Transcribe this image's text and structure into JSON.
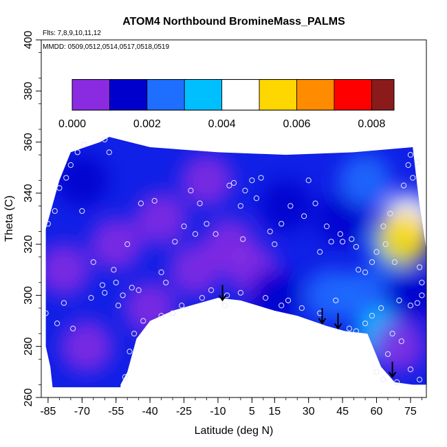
{
  "chart_data": {
    "type": "heatmap",
    "title": "ATOM4 Northbound BromineMass_PALMS",
    "subtitle_flights": "Flts: 7,8,9,10,11,12",
    "subtitle_dates": "MMDD: 0509,0512,0514,0517,0518,0519",
    "xlabel": "Latitude (deg N)",
    "ylabel": "Theta (C)",
    "xlim": [
      -88,
      82
    ],
    "ylim": [
      260,
      400
    ],
    "x_ticks": [
      "-85",
      "-70",
      "-55",
      "-40",
      "-25",
      "-10",
      "5",
      "15",
      "30",
      "45",
      "60",
      "75"
    ],
    "x_tick_values": [
      -85,
      -70,
      -55,
      -40,
      -25,
      -10,
      5,
      15,
      30,
      45,
      60,
      75
    ],
    "y_ticks": [
      "260",
      "280",
      "300",
      "320",
      "340",
      "360",
      "380",
      "400"
    ],
    "y_tick_values": [
      260,
      280,
      300,
      320,
      340,
      360,
      380,
      400
    ],
    "colorbar": {
      "min": 0,
      "max": 0.0086,
      "tick_labels": [
        "0.000",
        "0.002",
        "0.004",
        "0.006",
        "0.008"
      ],
      "tick_values": [
        0.0,
        0.002,
        0.004,
        0.006,
        0.008
      ],
      "segment_edges": [
        0.0,
        0.001,
        0.002,
        0.003,
        0.004,
        0.005,
        0.006,
        0.007,
        0.008,
        0.0086
      ],
      "colors": [
        "#8a2be2",
        "#0000cd",
        "#1e6fff",
        "#00bfff",
        "#ffffff",
        "#ffd700",
        "#ff8c00",
        "#ff0000",
        "#8b1a1a"
      ]
    },
    "surface_outline": [
      [
        -86,
        293
      ],
      [
        -86,
        326
      ],
      [
        -80,
        345
      ],
      [
        -75,
        356
      ],
      [
        -62,
        360
      ],
      [
        -58,
        362
      ],
      [
        -40,
        358
      ],
      [
        -10,
        356
      ],
      [
        20,
        355
      ],
      [
        50,
        356
      ],
      [
        76,
        358
      ],
      [
        79,
        335
      ],
      [
        82,
        318
      ],
      [
        82,
        265
      ],
      [
        76,
        265
      ],
      [
        68,
        266
      ],
      [
        62,
        272
      ],
      [
        56,
        285
      ],
      [
        46,
        286
      ],
      [
        38,
        288
      ],
      [
        25,
        292
      ],
      [
        15,
        294
      ],
      [
        0,
        298
      ],
      [
        -10,
        299
      ],
      [
        -22,
        296
      ],
      [
        -30,
        294
      ],
      [
        -40,
        290
      ],
      [
        -46,
        283
      ],
      [
        -50,
        270
      ],
      [
        -53,
        265
      ],
      [
        -53,
        264
      ],
      [
        -83,
        264
      ],
      [
        -84,
        272
      ],
      [
        -86,
        280
      ]
    ],
    "blobs": [
      {
        "lat": -68,
        "theta": 280,
        "value": 0.0002
      },
      {
        "lat": -78,
        "theta": 310,
        "value": 0.0003
      },
      {
        "lat": -55,
        "theta": 320,
        "value": 0.0004
      },
      {
        "lat": -35,
        "theta": 330,
        "value": 0.0005
      },
      {
        "lat": -20,
        "theta": 310,
        "value": 0.0003
      },
      {
        "lat": -5,
        "theta": 320,
        "value": 0.0005
      },
      {
        "lat": 5,
        "theta": 310,
        "value": 0.0004
      },
      {
        "lat": -40,
        "theta": 295,
        "value": 0.0002
      },
      {
        "lat": -70,
        "theta": 345,
        "value": 0.0012
      },
      {
        "lat": -15,
        "theta": 345,
        "value": 0.0009
      },
      {
        "lat": 20,
        "theta": 335,
        "value": 0.0011
      },
      {
        "lat": 15,
        "theta": 300,
        "value": 0.0013
      },
      {
        "lat": 40,
        "theta": 300,
        "value": 0.0024
      },
      {
        "lat": 45,
        "theta": 330,
        "value": 0.0018
      },
      {
        "lat": 55,
        "theta": 345,
        "value": 0.002
      },
      {
        "lat": 55,
        "theta": 300,
        "value": 0.0028
      },
      {
        "lat": 62,
        "theta": 285,
        "value": 0.0032
      },
      {
        "lat": 68,
        "theta": 320,
        "value": 0.0034
      },
      {
        "lat": 74,
        "theta": 330,
        "value": 0.0042
      },
      {
        "lat": 72,
        "theta": 322,
        "value": 0.0055
      },
      {
        "lat": 75,
        "theta": 300,
        "value": 0.0016
      },
      {
        "lat": 70,
        "theta": 280,
        "value": 0.0006
      }
    ],
    "sample_points": [
      [
        -86,
        293
      ],
      [
        -85,
        328
      ],
      [
        -82,
        333
      ],
      [
        -80,
        342
      ],
      [
        -77,
        346
      ],
      [
        -75,
        351
      ],
      [
        -72,
        356
      ],
      [
        -69,
        359
      ],
      [
        -60,
        361
      ],
      [
        -58,
        356
      ],
      [
        -78,
        297
      ],
      [
        -81,
        289
      ],
      [
        -70,
        333
      ],
      [
        -65,
        313
      ],
      [
        -60,
        301
      ],
      [
        -55,
        305
      ],
      [
        -54,
        296
      ],
      [
        -52,
        300
      ],
      [
        -48,
        303
      ],
      [
        -50,
        320
      ],
      [
        -45,
        302
      ],
      [
        -44,
        336
      ],
      [
        -38,
        337
      ],
      [
        -35,
        309
      ],
      [
        -33,
        305
      ],
      [
        -30,
        293
      ],
      [
        -29,
        321
      ],
      [
        -25,
        327
      ],
      [
        -22,
        341
      ],
      [
        -20,
        324
      ],
      [
        -18,
        336
      ],
      [
        -15,
        328
      ],
      [
        -13,
        302
      ],
      [
        -11,
        324
      ],
      [
        -7,
        296
      ],
      [
        -5,
        343
      ],
      [
        -3,
        344
      ],
      [
        0,
        335
      ],
      [
        1,
        322
      ],
      [
        2,
        341
      ],
      [
        5,
        345
      ],
      [
        7,
        338
      ],
      [
        9,
        346
      ],
      [
        13,
        325
      ],
      [
        15,
        320
      ],
      [
        18,
        328
      ],
      [
        21,
        298
      ],
      [
        22,
        335
      ],
      [
        28,
        331
      ],
      [
        30,
        345
      ],
      [
        33,
        336
      ],
      [
        35,
        317
      ],
      [
        38,
        327
      ],
      [
        40,
        321
      ],
      [
        42,
        298
      ],
      [
        44,
        324
      ],
      [
        45,
        321
      ],
      [
        49,
        322
      ],
      [
        51,
        319
      ],
      [
        52,
        310
      ],
      [
        55,
        309
      ],
      [
        58,
        313
      ],
      [
        60,
        317
      ],
      [
        63,
        327
      ],
      [
        64,
        320
      ],
      [
        66,
        332
      ],
      [
        68,
        313
      ],
      [
        70,
        298
      ],
      [
        72,
        343
      ],
      [
        74,
        351
      ],
      [
        75,
        355
      ],
      [
        76,
        346
      ],
      [
        78,
        352
      ],
      [
        79,
        311
      ],
      [
        80,
        305
      ],
      [
        80,
        300
      ],
      [
        78,
        297
      ],
      [
        75,
        296
      ],
      [
        71,
        282
      ],
      [
        67,
        285
      ],
      [
        65,
        277
      ],
      [
        60,
        270
      ],
      [
        63,
        267
      ],
      [
        69,
        266
      ],
      [
        75,
        271
      ],
      [
        79,
        267
      ],
      [
        62,
        295
      ],
      [
        58,
        292
      ],
      [
        55,
        289
      ],
      [
        51,
        286
      ],
      [
        48,
        287
      ],
      [
        35,
        293
      ],
      [
        27,
        295
      ],
      [
        18,
        296
      ],
      [
        11,
        299
      ],
      [
        0,
        301
      ],
      [
        -6,
        300
      ],
      [
        -17,
        299
      ],
      [
        -26,
        296
      ],
      [
        -35,
        292
      ],
      [
        -43,
        290
      ],
      [
        -47,
        285
      ],
      [
        -49,
        278
      ],
      [
        -51,
        268
      ],
      [
        -56,
        310
      ],
      [
        -61,
        304
      ],
      [
        -66,
        299
      ],
      [
        -74,
        287
      ]
    ],
    "arrows": [
      {
        "lat": -8,
        "theta": 304
      },
      {
        "lat": 36,
        "theta": 295
      },
      {
        "lat": 43,
        "theta": 293
      },
      {
        "lat": 67,
        "theta": 274
      }
    ],
    "colorbar_top_theta": 384.5,
    "colorbar_bottom_theta": 372.5
  }
}
